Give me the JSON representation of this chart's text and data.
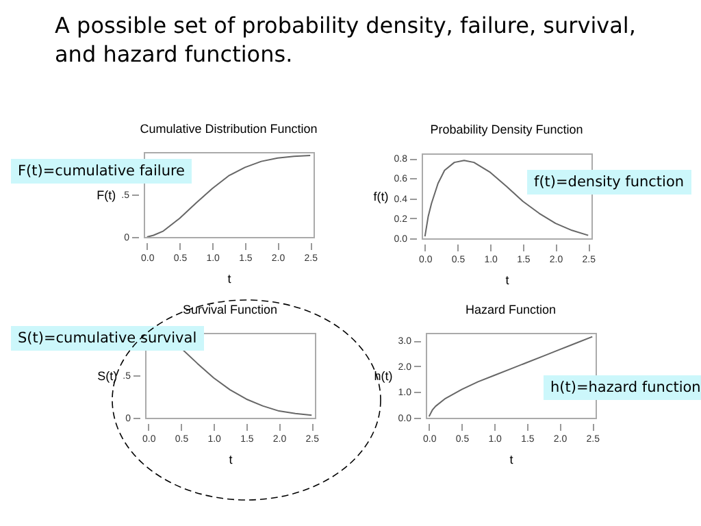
{
  "chart_data": [
    {
      "type": "line",
      "title": "Cumulative Distribution Function",
      "xlabel": "t",
      "ylabel": "F(t)",
      "color": "#666666",
      "grid": false,
      "x": [
        0,
        0.1,
        0.25,
        0.5,
        0.75,
        1.0,
        1.25,
        1.5,
        1.75,
        2.0,
        2.25,
        2.5
      ],
      "values": [
        0,
        0.02,
        0.07,
        0.22,
        0.4,
        0.57,
        0.72,
        0.82,
        0.89,
        0.93,
        0.95,
        0.96
      ],
      "xlim": [
        -0.05,
        2.55
      ],
      "ylim": [
        0,
        1
      ],
      "xticks": [
        {
          "value": 0,
          "label": "0.0"
        },
        {
          "value": 0.5,
          "label": "0.5"
        },
        {
          "value": 1,
          "label": "1.0"
        },
        {
          "value": 1.5,
          "label": "1.5"
        },
        {
          "value": 2,
          "label": "2.0"
        },
        {
          "value": 2.5,
          "label": "2.5"
        }
      ],
      "yticks": [
        0,
        {
          "value": 0.5,
          "label": ".5"
        }
      ],
      "annotations": [
        "A possible set of probability density, failure, survival, and hazard functions.",
        "F(t)=cumulative failure"
      ]
    },
    {
      "type": "line",
      "title": "Probability Density Function",
      "xlabel": "t",
      "ylabel": "f(t)",
      "color": "#666666",
      "grid": false,
      "x": [
        0,
        0.05,
        0.1,
        0.2,
        0.3,
        0.45,
        0.6,
        0.75,
        1.0,
        1.25,
        1.5,
        1.75,
        2.0,
        2.25,
        2.5
      ],
      "values": [
        0.02,
        0.22,
        0.35,
        0.55,
        0.68,
        0.76,
        0.78,
        0.76,
        0.66,
        0.52,
        0.37,
        0.25,
        0.15,
        0.08,
        0.03
      ],
      "xlim": [
        -0.05,
        2.55
      ],
      "ylim": [
        0,
        0.85
      ],
      "xticks": [
        {
          "value": 0,
          "label": "0.0"
        },
        {
          "value": 0.5,
          "label": "0.5"
        },
        {
          "value": 1,
          "label": "1.0"
        },
        {
          "value": 1.5,
          "label": "1.5"
        },
        {
          "value": 2,
          "label": "2.0"
        },
        {
          "value": 2.5,
          "label": "2.5"
        }
      ],
      "yticks": [
        {
          "value": 0,
          "label": "0.0"
        },
        0.2,
        0.4,
        0.6,
        0.8
      ],
      "annotations": [
        "f(t)=density function"
      ]
    },
    {
      "type": "line",
      "title": "Survival Function",
      "xlabel": "t",
      "ylabel": "S(t)",
      "color": "#666666",
      "grid": false,
      "x": [
        0.5,
        0.75,
        1.0,
        1.25,
        1.5,
        1.75,
        2.0,
        2.25,
        2.5
      ],
      "values": [
        0.82,
        0.64,
        0.47,
        0.33,
        0.22,
        0.14,
        0.08,
        0.05,
        0.03
      ],
      "xlim": [
        -0.05,
        2.55
      ],
      "ylim": [
        0,
        1
      ],
      "xticks": [
        {
          "value": 0,
          "label": "0.0"
        },
        {
          "value": 0.5,
          "label": "0.5"
        },
        {
          "value": 1,
          "label": "1.0"
        },
        {
          "value": 1.5,
          "label": "1.5"
        },
        {
          "value": 2,
          "label": "2.0"
        },
        {
          "value": 2.5,
          "label": "2.5"
        }
      ],
      "yticks": [
        0,
        {
          "value": 0.5,
          "label": ".5"
        }
      ],
      "annotations": [
        "S(t)=cumulative survival"
      ]
    },
    {
      "type": "line",
      "title": "Hazard Function",
      "xlabel": "t",
      "ylabel": "h(t)",
      "color": "#666666",
      "grid": false,
      "x": [
        0,
        0.05,
        0.1,
        0.25,
        0.5,
        0.75,
        1.0,
        1.25,
        1.5,
        1.75,
        2.0,
        2.25,
        2.5
      ],
      "values": [
        0.05,
        0.3,
        0.45,
        0.75,
        1.1,
        1.4,
        1.65,
        1.9,
        2.15,
        2.4,
        2.65,
        2.9,
        3.15
      ],
      "xlim": [
        -0.05,
        2.55
      ],
      "ylim": [
        0,
        3.3
      ],
      "xticks": [
        {
          "value": 0,
          "label": "0.0"
        },
        {
          "value": 0.5,
          "label": "0.5"
        },
        {
          "value": 1,
          "label": "1.0"
        },
        {
          "value": 1.5,
          "label": "1.5"
        },
        {
          "value": 2,
          "label": "2.0"
        },
        {
          "value": 2.5,
          "label": "2.5"
        }
      ],
      "yticks": [
        {
          "value": 0,
          "label": "0.0"
        },
        {
          "value": 1,
          "label": "1.0"
        },
        {
          "value": 2,
          "label": "2.0"
        },
        {
          "value": 3,
          "label": "3.0"
        }
      ],
      "annotations": [
        "h(t)=hazard function"
      ]
    }
  ]
}
